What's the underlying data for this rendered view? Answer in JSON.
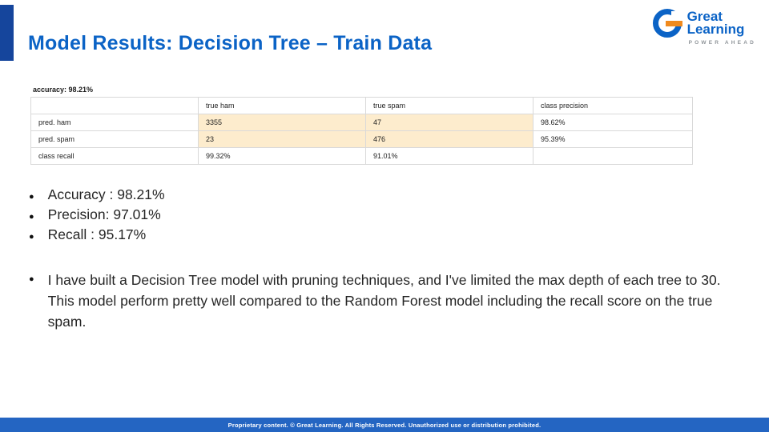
{
  "slide": {
    "title": "Model Results: Decision Tree – Train Data",
    "footer": "Proprietary content. © Great Learning. All Rights Reserved. Unauthorized use or distribution prohibited."
  },
  "logo": {
    "line1": "Great",
    "line2": "Learning",
    "tagline": "POWER AHEAD"
  },
  "matrix": {
    "accuracy_label": "accuracy: 98.21%",
    "columns": [
      "",
      "true ham",
      "true spam",
      "class precision"
    ],
    "rows": [
      [
        "pred. ham",
        "3355",
        "47",
        "98.62%"
      ],
      [
        "pred. spam",
        "23",
        "476",
        "95.39%"
      ],
      [
        "class recall",
        "99.32%",
        "91.01%",
        ""
      ]
    ]
  },
  "bullets": {
    "glyph": "●",
    "metrics": [
      "Accuracy : 98.21%",
      "Precision: 97.01%",
      "Recall : 95.17%"
    ],
    "paragraph": "I have built a Decision Tree model with  pruning techniques, and I've limited the max depth of each tree to 30. This model perform pretty well compared to the Random Forest model including the recall score on the true spam."
  },
  "colors": {
    "title_blue": "#0b63c6",
    "accent_bar": "#15459c",
    "footer_bar": "#2465c2",
    "logo_orange": "#f08a1d",
    "cell_highlight": "#fdeccd"
  }
}
